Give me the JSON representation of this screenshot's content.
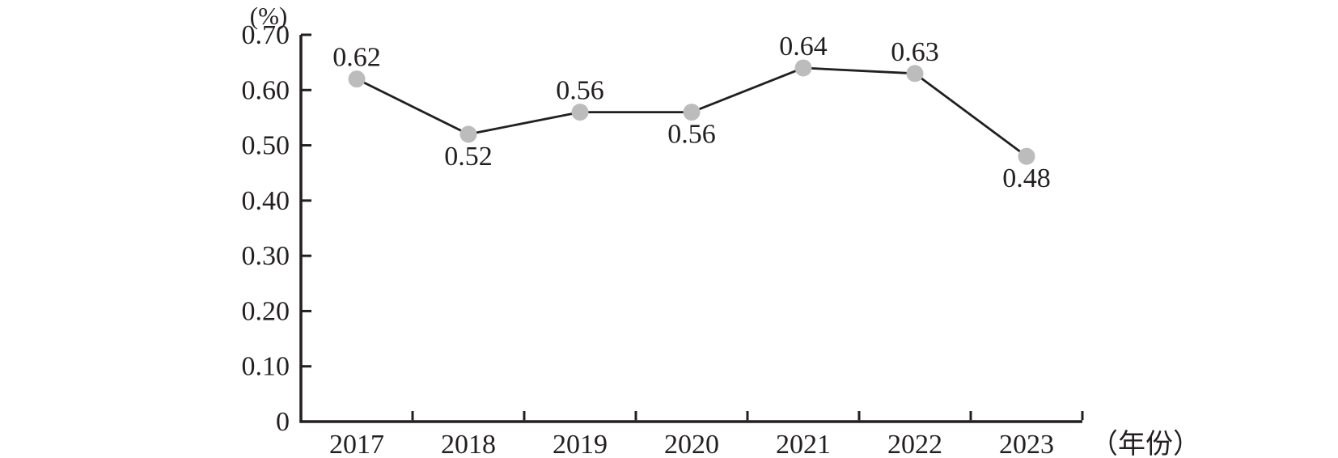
{
  "chart_data": {
    "type": "line",
    "title": "",
    "ylabel": "(%)",
    "xlabel": "（年份）",
    "categories": [
      "2017",
      "2018",
      "2019",
      "2020",
      "2021",
      "2022",
      "2023"
    ],
    "values": [
      0.62,
      0.52,
      0.56,
      0.56,
      0.64,
      0.63,
      0.48
    ],
    "point_labels": [
      "0.62",
      "0.52",
      "0.56",
      "0.56",
      "0.64",
      "0.63",
      "0.48"
    ],
    "label_positions": [
      "above",
      "below",
      "above",
      "below",
      "above",
      "above",
      "below"
    ],
    "ylim": [
      0,
      0.7
    ],
    "ytick_values": [
      0,
      0.1,
      0.2,
      0.3,
      0.4,
      0.5,
      0.6,
      0.7
    ],
    "ytick_labels": [
      "0",
      "0.10",
      "0.20",
      "0.30",
      "0.40",
      "0.50",
      "0.60",
      "0.70"
    ],
    "grid": false,
    "legend": "none",
    "colors": {
      "line": "#231f20",
      "axis": "#231f20",
      "marker": "#bcbcbc",
      "text": "#231f20",
      "background": "#ffffff"
    }
  }
}
